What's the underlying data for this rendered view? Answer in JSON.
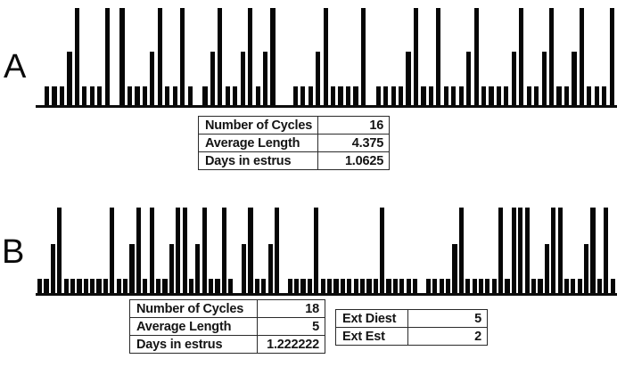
{
  "panel_a": {
    "label": "A",
    "table": {
      "rows": [
        {
          "label": "Number of Cycles",
          "value": "16"
        },
        {
          "label": "Average Length",
          "value": "4.375"
        },
        {
          "label": "Days in estrus",
          "value": "1.0625"
        }
      ]
    }
  },
  "panel_b": {
    "label": "B",
    "table": {
      "rows": [
        {
          "label": "Number of Cycles",
          "value": "18"
        },
        {
          "label": "Average Length",
          "value": "5"
        },
        {
          "label": "Days in estrus",
          "value": "1.222222"
        }
      ]
    },
    "ext_table": {
      "rows": [
        {
          "label": "Ext Diest",
          "value": "5"
        },
        {
          "label": "Ext Est",
          "value": "2"
        }
      ]
    }
  },
  "chart_data": [
    {
      "type": "bar",
      "panel": "A",
      "title": "",
      "xlabel": "",
      "ylabel": "",
      "x_unit": "consecutive days",
      "grid": false,
      "axes": "baseline only, no ticks or tick labels",
      "bar_color": "#060606",
      "value_encoding": {
        "0": "gap / no bar",
        "1": "short bar (diestrus day)",
        "2": "medium bar (proestrus day)",
        "3": "tall bar (estrus day)"
      },
      "values": [
        1,
        1,
        1,
        2,
        3,
        1,
        1,
        1,
        3,
        0,
        3,
        1,
        1,
        1,
        2,
        3,
        1,
        1,
        3,
        1,
        0,
        1,
        2,
        3,
        1,
        1,
        2,
        3,
        1,
        2,
        3,
        0,
        0,
        1,
        1,
        1,
        2,
        3,
        1,
        1,
        1,
        1,
        3,
        0,
        1,
        1,
        1,
        1,
        2,
        3,
        1,
        1,
        3,
        1,
        1,
        1,
        2,
        3,
        1,
        1,
        1,
        1,
        2,
        3,
        1,
        1,
        2,
        3,
        1,
        1,
        2,
        3,
        1,
        1,
        1,
        3
      ],
      "summary_stats": {
        "number_of_cycles": 16,
        "average_length": 4.375,
        "days_in_estrus": 1.0625
      }
    },
    {
      "type": "bar",
      "panel": "B",
      "title": "",
      "xlabel": "",
      "ylabel": "",
      "x_unit": "consecutive days",
      "grid": false,
      "axes": "baseline only, no ticks or tick labels",
      "bar_color": "#060606",
      "value_encoding": {
        "0": "gap / no bar",
        "1": "short bar (diestrus day)",
        "2": "medium bar (proestrus day)",
        "3": "tall bar (estrus day)"
      },
      "values": [
        1,
        1,
        2,
        3,
        1,
        1,
        1,
        1,
        1,
        1,
        1,
        3,
        1,
        1,
        2,
        3,
        1,
        3,
        1,
        1,
        2,
        3,
        3,
        1,
        2,
        3,
        1,
        1,
        3,
        1,
        0,
        2,
        3,
        1,
        1,
        2,
        3,
        0,
        1,
        1,
        1,
        1,
        3,
        1,
        1,
        1,
        1,
        1,
        1,
        1,
        1,
        1,
        3,
        1,
        1,
        1,
        1,
        1,
        0,
        1,
        1,
        1,
        1,
        2,
        3,
        1,
        1,
        1,
        1,
        1,
        3,
        1,
        3,
        3,
        3,
        1,
        1,
        2,
        3,
        3,
        1,
        1,
        1,
        2,
        3,
        1,
        3,
        1
      ],
      "summary_stats": {
        "number_of_cycles": 18,
        "average_length": 5,
        "days_in_estrus": 1.222222,
        "ext_diest": 5,
        "ext_est": 2
      }
    }
  ]
}
